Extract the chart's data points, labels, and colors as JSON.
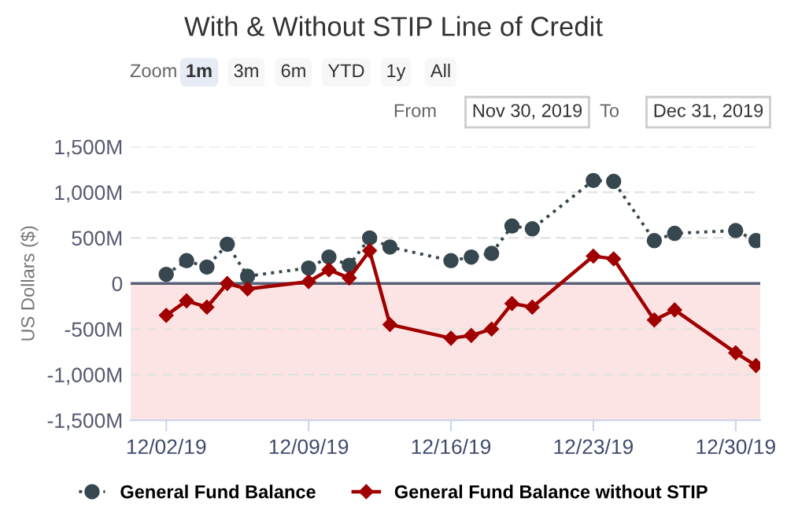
{
  "chart_data": {
    "type": "line",
    "title": "With & Without STIP Line of Credit",
    "ylabel": "US Dollars ($)",
    "annotations": [
      "Zoom",
      "1m",
      "3m",
      "6m",
      "YTD",
      "1y",
      "All",
      "From",
      "Nov 30, 2019",
      "To",
      "Dec 31, 2019"
    ],
    "x": [
      "2019-12-02",
      "2019-12-03",
      "2019-12-04",
      "2019-12-05",
      "2019-12-06",
      "2019-12-09",
      "2019-12-10",
      "2019-12-11",
      "2019-12-12",
      "2019-12-13",
      "2019-12-16",
      "2019-12-17",
      "2019-12-18",
      "2019-12-19",
      "2019-12-20",
      "2019-12-23",
      "2019-12-24",
      "2019-12-26",
      "2019-12-27",
      "2019-12-30",
      "2019-12-31"
    ],
    "series": [
      {
        "name": "General Fund Balance",
        "color": "#37474f",
        "marker": "circle",
        "line_style": "dotted",
        "values": [
          100,
          250,
          180,
          430,
          80,
          170,
          290,
          200,
          500,
          400,
          250,
          290,
          330,
          630,
          600,
          1130,
          1120,
          470,
          550,
          580,
          470
        ]
      },
      {
        "name": "General Fund Balance without STIP",
        "color": "#a00000",
        "marker": "diamond",
        "line_style": "solid",
        "values": [
          -350,
          -190,
          -260,
          0,
          -60,
          20,
          150,
          60,
          360,
          -450,
          -600,
          -570,
          -500,
          -220,
          -260,
          300,
          270,
          -400,
          -290,
          -760,
          -900
        ]
      }
    ],
    "xlim": [
      "2019-11-30T06:00",
      "2019-12-31T05:00"
    ],
    "xticks": [
      {
        "value": "2019-12-02",
        "label": "12/02/19"
      },
      {
        "value": "2019-12-09",
        "label": "12/09/19"
      },
      {
        "value": "2019-12-16",
        "label": "12/16/19"
      },
      {
        "value": "2019-12-23",
        "label": "12/23/19"
      },
      {
        "value": "2019-12-30",
        "label": "12/30/19"
      }
    ],
    "ylim": [
      -1500,
      1500
    ],
    "yticks": [
      {
        "value": -1500,
        "label": "-1,500M"
      },
      {
        "value": -1000,
        "label": "-1,000M"
      },
      {
        "value": -500,
        "label": "-500M"
      },
      0,
      {
        "value": 500,
        "label": "500M"
      },
      {
        "value": 1000,
        "label": "1,000M"
      },
      {
        "value": 1500,
        "label": "1,500M"
      }
    ],
    "ref_lines": [
      {
        "axis": "y",
        "value": 0,
        "color": "#5a5f78"
      }
    ],
    "bands": [
      {
        "axis": "y",
        "from": -1500,
        "to": 0,
        "color": "#fde4e4"
      }
    ],
    "grid": "y",
    "legend": "bottom"
  }
}
